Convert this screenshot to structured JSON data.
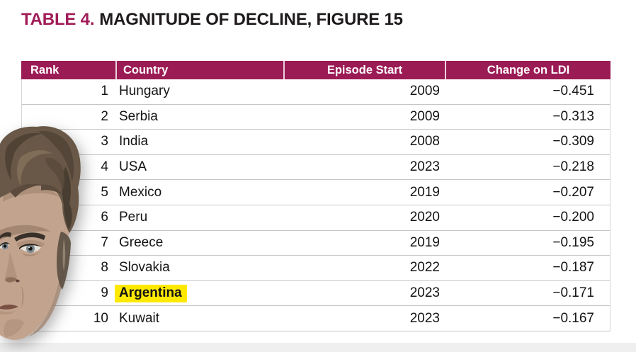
{
  "page": {
    "title_prefix": "TABLE 4.",
    "title_main": "MAGNITUDE OF DECLINE, FIGURE 15"
  },
  "table": {
    "columns": [
      "Rank",
      "Country",
      "Episode Start",
      "Change on LDI"
    ],
    "rows": [
      {
        "rank": "1",
        "country": "Hungary",
        "episode_start": "2009",
        "change_on_ldi": "−0.451",
        "highlighted": false
      },
      {
        "rank": "2",
        "country": "Serbia",
        "episode_start": "2009",
        "change_on_ldi": "−0.313",
        "highlighted": false
      },
      {
        "rank": "3",
        "country": "India",
        "episode_start": "2008",
        "change_on_ldi": "−0.309",
        "highlighted": false
      },
      {
        "rank": "4",
        "country": "USA",
        "episode_start": "2023",
        "change_on_ldi": "−0.218",
        "highlighted": false
      },
      {
        "rank": "5",
        "country": "Mexico",
        "episode_start": "2019",
        "change_on_ldi": "−0.207",
        "highlighted": false
      },
      {
        "rank": "6",
        "country": "Peru",
        "episode_start": "2020",
        "change_on_ldi": "−0.200",
        "highlighted": false
      },
      {
        "rank": "7",
        "country": "Greece",
        "episode_start": "2019",
        "change_on_ldi": "−0.195",
        "highlighted": false
      },
      {
        "rank": "8",
        "country": "Slovakia",
        "episode_start": "2022",
        "change_on_ldi": "−0.187",
        "highlighted": false
      },
      {
        "rank": "9",
        "country": "Argentina",
        "episode_start": "2023",
        "change_on_ldi": "−0.171",
        "highlighted": true
      },
      {
        "rank": "10",
        "country": "Kuwait",
        "episode_start": "2023",
        "change_on_ldi": "−0.167",
        "highlighted": false
      }
    ]
  },
  "overlay": {
    "face_cutout_label": "man-face-photo-cutout"
  },
  "colors": {
    "header_bg": "#9b1b55",
    "title_accent": "#a11c58",
    "highlight_yellow": "#ffe900",
    "row_border": "#c6c6c6"
  }
}
